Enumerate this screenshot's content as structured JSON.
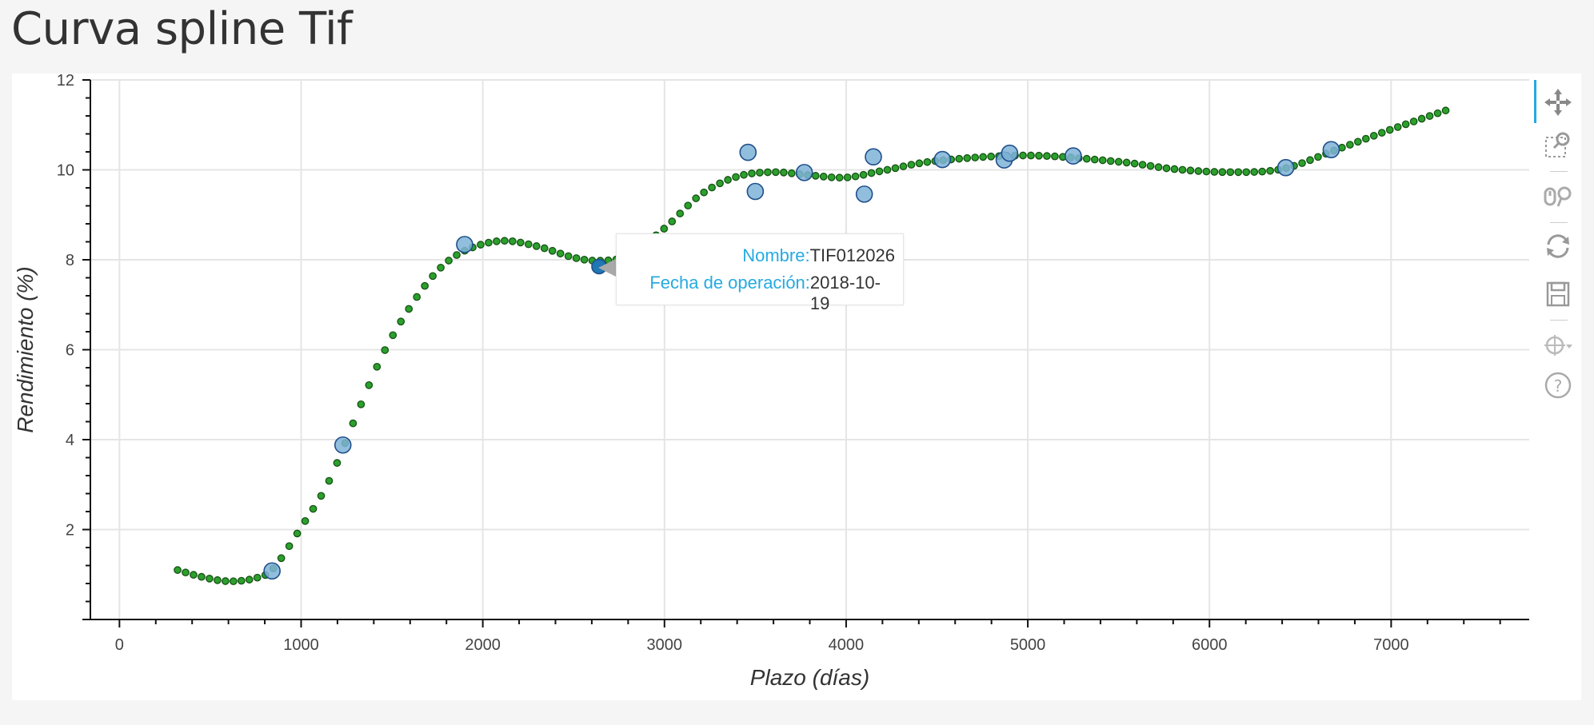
{
  "page": {
    "title": "Curva spline Tif"
  },
  "tooltip": {
    "name_label": "Nombre:",
    "name_value": "TIF012026",
    "date_label": "Fecha de operación:",
    "date_value": "2018-10-19",
    "target": {
      "x": 2640,
      "y": 7.85
    }
  },
  "toolbar": {
    "tools": [
      {
        "name": "pan-icon",
        "active": true
      },
      {
        "name": "box-zoom-icon",
        "active": false
      },
      {
        "name": "wheel-zoom-icon",
        "active": false
      },
      {
        "name": "reset-icon",
        "active": false
      },
      {
        "name": "save-icon",
        "active": false
      },
      {
        "name": "crosshair-icon",
        "active": false
      },
      {
        "name": "help-icon",
        "active": false
      }
    ],
    "accent_color": "#26aae1"
  },
  "chart_data": {
    "type": "scatter",
    "title": "",
    "xlabel": "Plazo (días)",
    "ylabel": "Rendimiento (%)",
    "xlim": [
      -160,
      7760
    ],
    "ylim": [
      0.0,
      12.0
    ],
    "x_ticks": [
      0,
      1000,
      2000,
      3000,
      4000,
      5000,
      6000,
      7000
    ],
    "y_ticks": [
      2,
      4,
      6,
      8,
      10,
      12
    ],
    "grid": true,
    "colors": {
      "observed_fill": "#7fb3d8",
      "observed_stroke": "#1f4f8a",
      "selected_fill": "#1f77b4",
      "spline_fill": "#2ca02c",
      "spline_stroke": "#145214"
    },
    "series": [
      {
        "name": "",
        "kind": "observed",
        "points": [
          {
            "x": 840,
            "y": 1.08
          },
          {
            "x": 1230,
            "y": 3.88
          },
          {
            "x": 1900,
            "y": 8.34
          },
          {
            "x": 2640,
            "y": 7.85,
            "selected": true
          },
          {
            "x": 3460,
            "y": 10.39
          },
          {
            "x": 3500,
            "y": 9.52
          },
          {
            "x": 3770,
            "y": 9.94
          },
          {
            "x": 4100,
            "y": 9.46
          },
          {
            "x": 4150,
            "y": 10.29
          },
          {
            "x": 4530,
            "y": 10.23
          },
          {
            "x": 4870,
            "y": 10.22
          },
          {
            "x": 4900,
            "y": 10.37
          },
          {
            "x": 5250,
            "y": 10.31
          },
          {
            "x": 6420,
            "y": 10.05
          },
          {
            "x": 6670,
            "y": 10.45
          }
        ]
      },
      {
        "name": "",
        "kind": "spline",
        "knots": [
          {
            "x": 320,
            "y": 1.1
          },
          {
            "x": 450,
            "y": 0.95
          },
          {
            "x": 600,
            "y": 0.85
          },
          {
            "x": 750,
            "y": 0.92
          },
          {
            "x": 850,
            "y": 1.15
          },
          {
            "x": 1000,
            "y": 2.05
          },
          {
            "x": 1150,
            "y": 3.05
          },
          {
            "x": 1300,
            "y": 4.5
          },
          {
            "x": 1450,
            "y": 5.9
          },
          {
            "x": 1600,
            "y": 6.95
          },
          {
            "x": 1750,
            "y": 7.75
          },
          {
            "x": 1900,
            "y": 8.2
          },
          {
            "x": 2100,
            "y": 8.42
          },
          {
            "x": 2300,
            "y": 8.3
          },
          {
            "x": 2500,
            "y": 8.05
          },
          {
            "x": 2650,
            "y": 7.98
          },
          {
            "x": 2800,
            "y": 8.1
          },
          {
            "x": 3000,
            "y": 8.7
          },
          {
            "x": 3200,
            "y": 9.45
          },
          {
            "x": 3400,
            "y": 9.85
          },
          {
            "x": 3600,
            "y": 9.95
          },
          {
            "x": 3800,
            "y": 9.88
          },
          {
            "x": 4000,
            "y": 9.83
          },
          {
            "x": 4200,
            "y": 9.98
          },
          {
            "x": 4500,
            "y": 10.2
          },
          {
            "x": 5000,
            "y": 10.32
          },
          {
            "x": 5500,
            "y": 10.18
          },
          {
            "x": 5800,
            "y": 10.02
          },
          {
            "x": 6100,
            "y": 9.95
          },
          {
            "x": 6400,
            "y": 10.02
          },
          {
            "x": 6700,
            "y": 10.45
          },
          {
            "x": 7000,
            "y": 10.9
          },
          {
            "x": 7300,
            "y": 11.32
          }
        ],
        "sample_count": 160
      }
    ]
  }
}
